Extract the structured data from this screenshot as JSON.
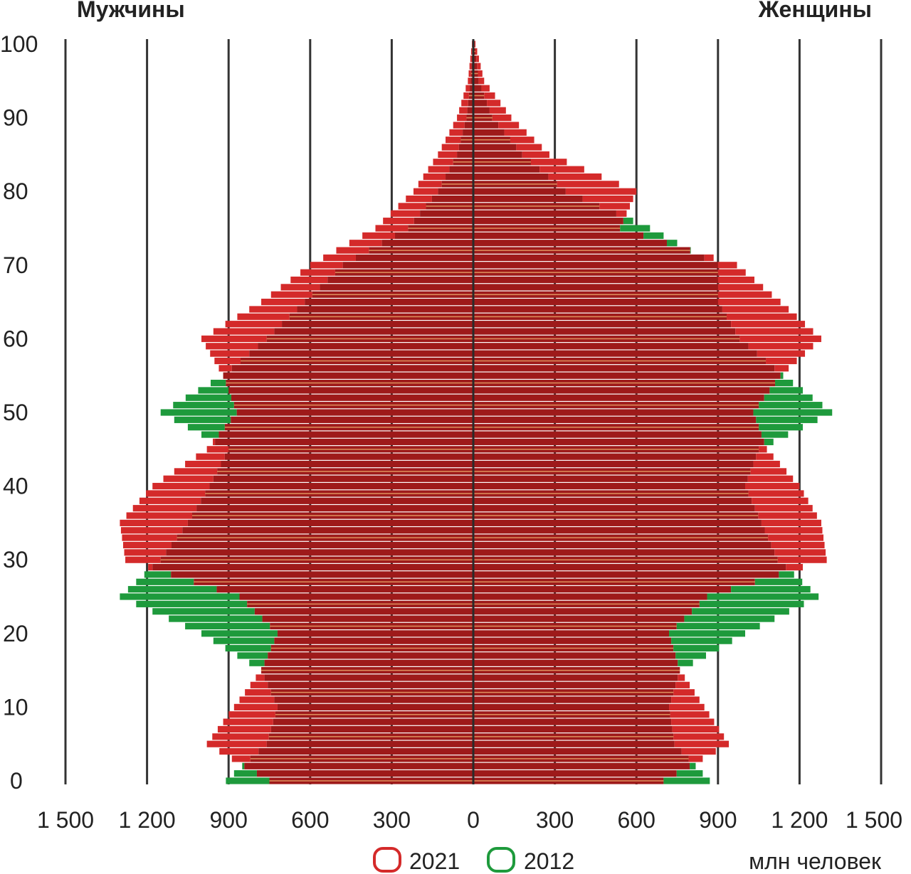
{
  "chart_data": {
    "type": "population-pyramid",
    "left_label": "Мужчины",
    "right_label": "Женщины",
    "unit_label": "млн человек",
    "x_ticks": [
      "1 500",
      "1 200",
      "900",
      "600",
      "300",
      "0",
      "300",
      "600",
      "900",
      "1 200",
      "1 500"
    ],
    "x_tick_values": [
      -1500,
      -1200,
      -900,
      -600,
      -300,
      0,
      300,
      600,
      900,
      1200,
      1500
    ],
    "y_ticks": [
      100,
      90,
      80,
      70,
      60,
      50,
      40,
      30,
      20,
      10,
      0
    ],
    "xlim": [
      -1500,
      1500
    ],
    "ylim": [
      0,
      100
    ],
    "colors": {
      "2021": "#d42a2a",
      "2012": "#1e9a3c",
      "overlap": "#9e1a1a"
    },
    "series": [
      {
        "name": "2021",
        "ages": [
          0,
          5,
          10,
          15,
          20,
          25,
          30,
          35,
          40,
          45,
          50,
          55,
          60,
          65,
          70,
          75,
          80,
          85,
          90,
          95,
          100
        ],
        "men": [
          750,
          980,
          880,
          780,
          720,
          860,
          1280,
          1300,
          1180,
          980,
          870,
          920,
          1000,
          780,
          600,
          360,
          220,
          130,
          60,
          20,
          5
        ],
        "women": [
          700,
          940,
          850,
          760,
          720,
          860,
          1300,
          1280,
          1200,
          1080,
          1030,
          1130,
          1280,
          1130,
          970,
          540,
          600,
          280,
          140,
          40,
          8
        ]
      },
      {
        "name": "2012",
        "ages": [
          0,
          5,
          10,
          15,
          20,
          25,
          30,
          35,
          40,
          45,
          50,
          55,
          60,
          65,
          70,
          75,
          80,
          85,
          90,
          95,
          100
        ],
        "men": [
          910,
          760,
          720,
          780,
          1000,
          1300,
          1150,
          1050,
          970,
          900,
          1150,
          920,
          760,
          620,
          480,
          240,
          130,
          60,
          25,
          10,
          3
        ],
        "women": [
          870,
          740,
          720,
          760,
          1000,
          1270,
          1120,
          1060,
          1000,
          1050,
          1320,
          1140,
          980,
          900,
          900,
          650,
          340,
          180,
          70,
          20,
          5
        ]
      }
    ]
  },
  "legend": [
    {
      "label": "2021",
      "color": "#d42a2a"
    },
    {
      "label": "2012",
      "color": "#1e9a3c"
    }
  ]
}
